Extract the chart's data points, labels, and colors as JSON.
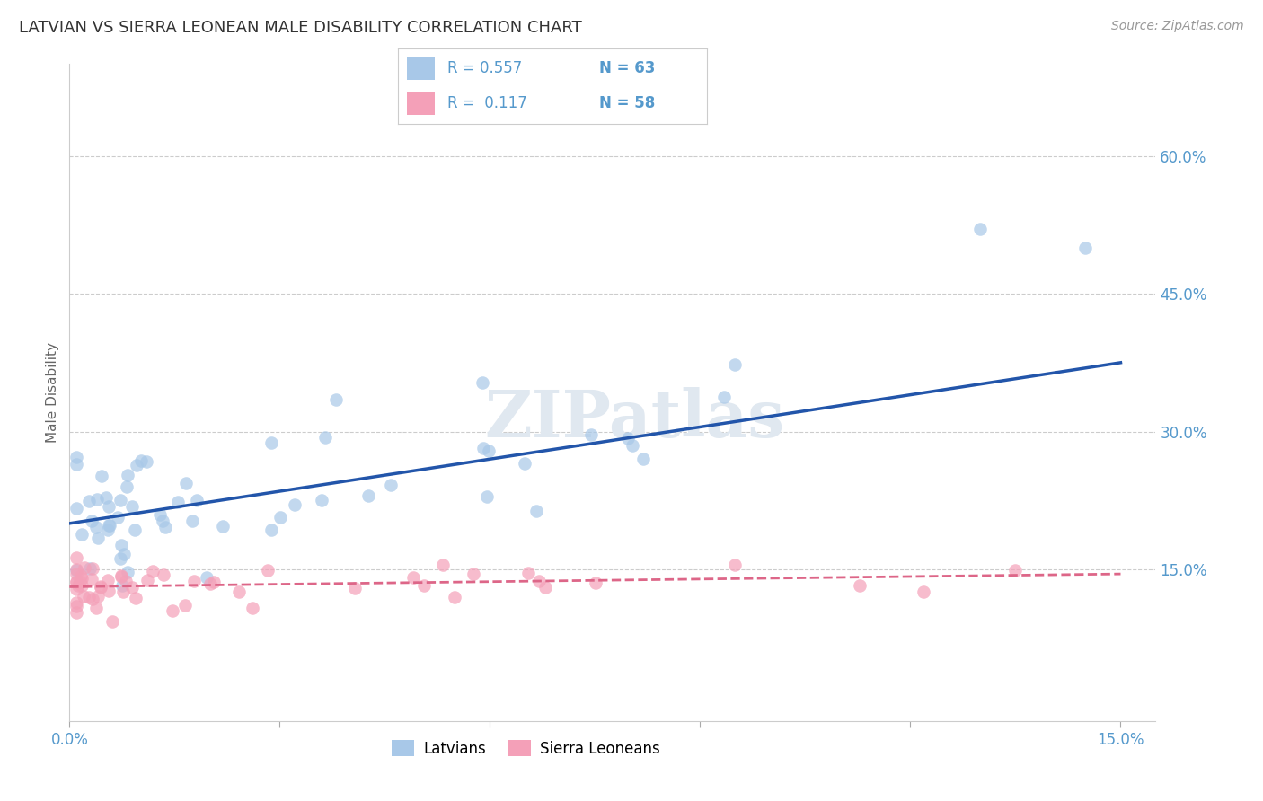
{
  "title": "LATVIAN VS SIERRA LEONEAN MALE DISABILITY CORRELATION CHART",
  "source": "Source: ZipAtlas.com",
  "ylabel": "Male Disability",
  "xlim": [
    0.0,
    0.155
  ],
  "ylim": [
    -0.015,
    0.7
  ],
  "yticks_right": [
    0.15,
    0.3,
    0.45,
    0.6
  ],
  "yticklabels_right": [
    "15.0%",
    "30.0%",
    "45.0%",
    "60.0%"
  ],
  "xtick_positions": [
    0.0,
    0.03,
    0.06,
    0.09,
    0.12,
    0.15
  ],
  "xticklabels": [
    "0.0%",
    "",
    "",
    "",
    "",
    "15.0%"
  ],
  "latvian_color": "#a8c8e8",
  "sierra_color": "#f4a0b8",
  "latvian_line_color": "#2255aa",
  "sierra_line_color": "#dd6688",
  "background_color": "#ffffff",
  "grid_color": "#cccccc",
  "title_color": "#333333",
  "tick_label_color": "#5599cc",
  "legend_border_color": "#cccccc"
}
